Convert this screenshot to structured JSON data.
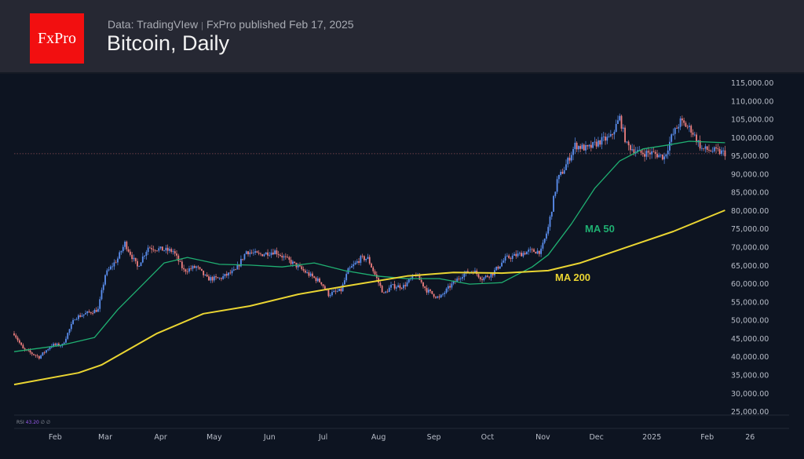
{
  "header": {
    "logo": "FxPro",
    "source": "Data: TradingVIew",
    "separator": "|",
    "published": "FxPro published Feb 17, 2025",
    "title": "Bitcoin, Daily"
  },
  "colors": {
    "up": "#5b8ff0",
    "down": "#ef7f7f",
    "ma50": "#1fb072",
    "ma200": "#ead532",
    "rsi": "#9b5cf0"
  },
  "chart_data": {
    "type": "candlestick",
    "title": "Bitcoin, Daily",
    "start_date": "2024-01-09",
    "ylim": [
      25000,
      115000
    ],
    "y_ticks": [
      "115,000.00",
      "110,000.00",
      "105,000.00",
      "100,000.00",
      "95,000.00",
      "90,000.00",
      "85,000.00",
      "80,000.00",
      "75,000.00",
      "70,000.00",
      "65,000.00",
      "60,000.00",
      "55,000.00",
      "50,000.00",
      "45,000.00",
      "40,000.00",
      "35,000.00",
      "30,000.00",
      "25,000.00"
    ],
    "x_ticks": [
      {
        "label": "Feb",
        "day": 23
      },
      {
        "label": "Mar",
        "day": 51
      },
      {
        "label": "Apr",
        "day": 82
      },
      {
        "label": "May",
        "day": 112
      },
      {
        "label": "Jun",
        "day": 143
      },
      {
        "label": "Jul",
        "day": 173
      },
      {
        "label": "Aug",
        "day": 204
      },
      {
        "label": "Sep",
        "day": 235
      },
      {
        "label": "Oct",
        "day": 265
      },
      {
        "label": "Nov",
        "day": 296
      },
      {
        "label": "Dec",
        "day": 326
      },
      {
        "label": "2025",
        "day": 357
      },
      {
        "label": "Feb",
        "day": 388
      },
      {
        "label": "26",
        "day": 412
      }
    ],
    "x_range_days": [
      0,
      412
    ],
    "price_path": [
      [
        0,
        46500
      ],
      [
        5,
        42200
      ],
      [
        14,
        40000
      ],
      [
        21,
        43300
      ],
      [
        27,
        43300
      ],
      [
        34,
        50800
      ],
      [
        40,
        51900
      ],
      [
        47,
        53000
      ],
      [
        51,
        62600
      ],
      [
        58,
        67000
      ],
      [
        62,
        71200
      ],
      [
        69,
        64700
      ],
      [
        75,
        70100
      ],
      [
        82,
        69500
      ],
      [
        89,
        69000
      ],
      [
        95,
        63700
      ],
      [
        102,
        64700
      ],
      [
        108,
        61500
      ],
      [
        115,
        61500
      ],
      [
        124,
        63700
      ],
      [
        130,
        69000
      ],
      [
        137,
        68000
      ],
      [
        146,
        69000
      ],
      [
        152,
        67000
      ],
      [
        159,
        64700
      ],
      [
        165,
        62600
      ],
      [
        172,
        60400
      ],
      [
        176,
        57200
      ],
      [
        183,
        58300
      ],
      [
        187,
        63700
      ],
      [
        194,
        67000
      ],
      [
        198,
        67000
      ],
      [
        203,
        61500
      ],
      [
        207,
        57200
      ],
      [
        211,
        59400
      ],
      [
        218,
        59400
      ],
      [
        225,
        62600
      ],
      [
        231,
        58300
      ],
      [
        238,
        56100
      ],
      [
        244,
        59400
      ],
      [
        251,
        62600
      ],
      [
        257,
        63700
      ],
      [
        262,
        61500
      ],
      [
        268,
        63000
      ],
      [
        275,
        67000
      ],
      [
        282,
        68000
      ],
      [
        288,
        69000
      ],
      [
        295,
        69000
      ],
      [
        299,
        75500
      ],
      [
        304,
        88400
      ],
      [
        308,
        91600
      ],
      [
        314,
        98000
      ],
      [
        321,
        97000
      ],
      [
        328,
        99100
      ],
      [
        334,
        100200
      ],
      [
        339,
        105500
      ],
      [
        343,
        98000
      ],
      [
        350,
        95900
      ],
      [
        357,
        95900
      ],
      [
        364,
        94800
      ],
      [
        368,
        100200
      ],
      [
        373,
        104500
      ],
      [
        379,
        102300
      ],
      [
        385,
        97000
      ],
      [
        391,
        96500
      ],
      [
        398,
        95900
      ]
    ],
    "last_price": 95700,
    "series": [
      {
        "name": "MA 50",
        "points": [
          [
            0,
            41500
          ],
          [
            27,
            43300
          ],
          [
            45,
            45400
          ],
          [
            58,
            53000
          ],
          [
            71,
            59400
          ],
          [
            84,
            65800
          ],
          [
            97,
            67300
          ],
          [
            115,
            65400
          ],
          [
            132,
            65200
          ],
          [
            150,
            64700
          ],
          [
            168,
            65800
          ],
          [
            185,
            63700
          ],
          [
            203,
            62200
          ],
          [
            220,
            61500
          ],
          [
            238,
            61500
          ],
          [
            255,
            60000
          ],
          [
            273,
            60400
          ],
          [
            290,
            64700
          ],
          [
            299,
            68000
          ],
          [
            312,
            76500
          ],
          [
            325,
            86200
          ],
          [
            339,
            93700
          ],
          [
            352,
            97000
          ],
          [
            365,
            98000
          ],
          [
            378,
            99100
          ],
          [
            398,
            98700
          ]
        ]
      },
      {
        "name": "MA 200",
        "points": [
          [
            0,
            32500
          ],
          [
            36,
            35700
          ],
          [
            49,
            37900
          ],
          [
            80,
            46500
          ],
          [
            106,
            51900
          ],
          [
            132,
            54000
          ],
          [
            159,
            57200
          ],
          [
            185,
            59400
          ],
          [
            220,
            62200
          ],
          [
            246,
            63200
          ],
          [
            273,
            63000
          ],
          [
            299,
            63700
          ],
          [
            317,
            65800
          ],
          [
            343,
            70100
          ],
          [
            369,
            74400
          ],
          [
            398,
            80200
          ]
        ]
      }
    ],
    "annotations": [
      {
        "text": "MA 50",
        "series": "MA 50"
      },
      {
        "text": "MA 200",
        "series": "MA 200"
      }
    ],
    "indicator": {
      "name": "RSI",
      "value": "43.20",
      "extra": "∅ ∅"
    }
  }
}
